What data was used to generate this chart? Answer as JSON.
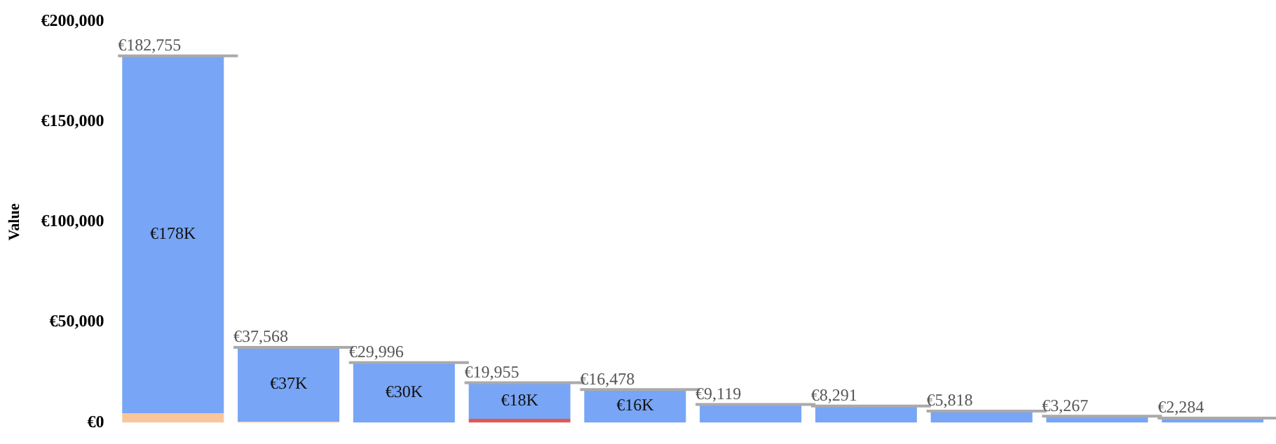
{
  "chart_data": {
    "type": "bar",
    "stacked": true,
    "ylabel": "Value",
    "categories": [
      null,
      null,
      null,
      null,
      null,
      null,
      null,
      null,
      null,
      null
    ],
    "series": [
      {
        "colors": [
          "#f9c69a",
          "#f9c69a",
          null,
          "#e05a50",
          null,
          null,
          null,
          null,
          null,
          null
        ],
        "values": [
          4755,
          568,
          null,
          1955,
          null,
          null,
          null,
          null,
          null,
          null
        ]
      },
      {
        "color": "#78a5f5",
        "values": [
          178000,
          37000,
          29996,
          18000,
          16478,
          9119,
          8291,
          5818,
          3267,
          2284
        ],
        "value_labels": [
          "€178K",
          "€37K",
          "€30K",
          "€18K",
          "€16K",
          null,
          null,
          null,
          null,
          null
        ]
      }
    ],
    "totals": [
      "€182,755",
      "€37,568",
      "€29,996",
      "€19,955",
      "€16,478",
      "€9,119",
      "€8,291",
      "€5,818",
      "€3,267",
      "€2,284"
    ],
    "ylim": [
      0,
      200000
    ],
    "yticks": [
      {
        "value": 0,
        "label": "€0"
      },
      {
        "value": 50000,
        "label": "€50,000"
      },
      {
        "value": 100000,
        "label": "€100,000"
      },
      {
        "value": 150000,
        "label": "€150,000"
      },
      {
        "value": 200000,
        "label": "€200,000"
      }
    ],
    "grid": false,
    "legend": false
  }
}
